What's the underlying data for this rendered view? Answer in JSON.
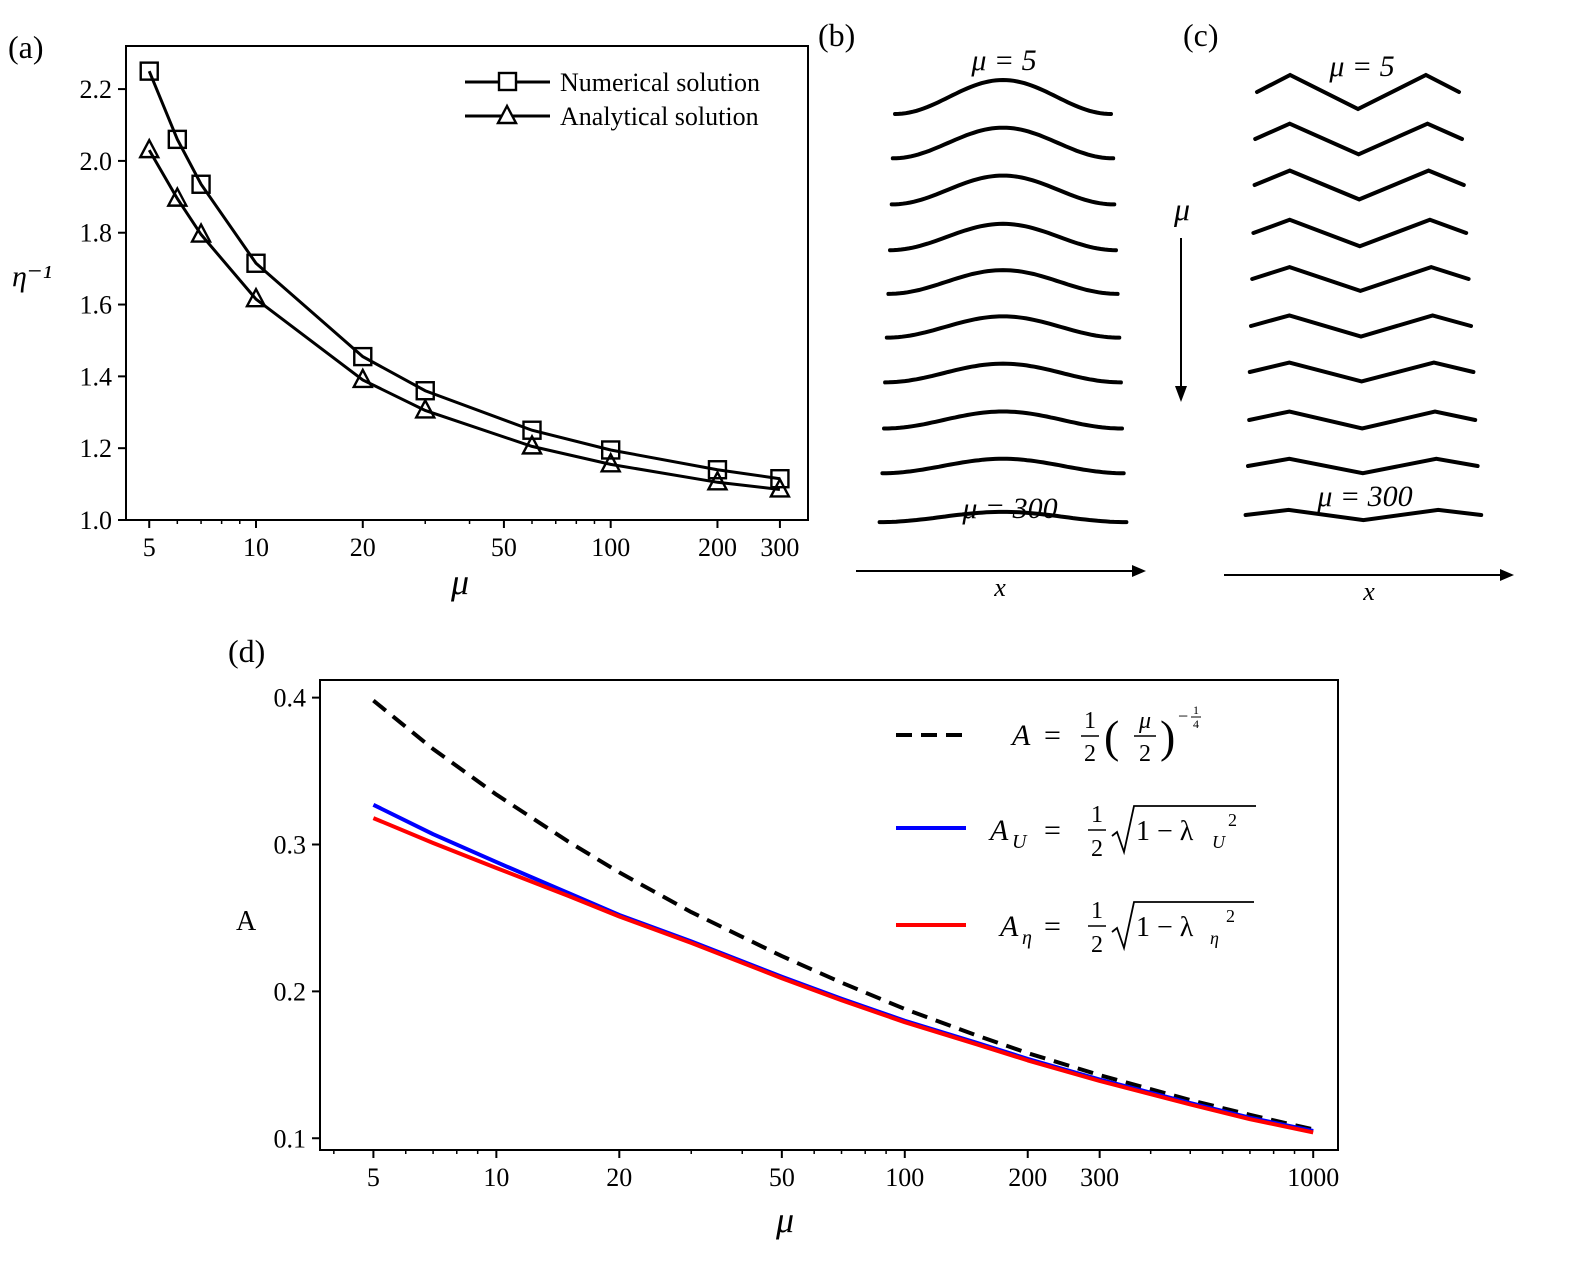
{
  "panels": {
    "a": {
      "label": "(a)"
    },
    "b": {
      "label": "(b)",
      "mu_top": "μ = 5",
      "mu_bottom": "μ = 300",
      "x_axis": "x",
      "mu_arrow": "μ"
    },
    "c": {
      "label": "(c)",
      "mu_top": "μ = 5",
      "mu_bottom": "μ = 300",
      "x_axis": "x"
    },
    "d": {
      "label": "(d)"
    }
  },
  "colors": {
    "black": "#000000",
    "blue": "#0000ff",
    "red": "#ff0000"
  },
  "chart_data": [
    {
      "id": "a",
      "type": "line",
      "xscale": "log",
      "xlabel": "μ",
      "ylabel": "η⁻¹",
      "xlim": [
        4.3,
        360
      ],
      "ylim": [
        1.0,
        2.32
      ],
      "xticks": [
        5,
        10,
        20,
        50,
        100,
        200,
        300
      ],
      "xtick_labels": [
        "5",
        "10",
        "20",
        "50",
        "100",
        "200",
        "300"
      ],
      "yticks": [
        1.0,
        1.2,
        1.4,
        1.6,
        1.8,
        2.0,
        2.2
      ],
      "ytick_labels": [
        "1.0",
        "1.2",
        "1.4",
        "1.6",
        "1.8",
        "2.0",
        "2.2"
      ],
      "legend_position": "top-right",
      "series": [
        {
          "name": "Numerical solution",
          "marker": "square",
          "x": [
            5,
            6,
            7,
            10,
            20,
            30,
            60,
            100,
            200,
            300
          ],
          "y": [
            2.25,
            2.06,
            1.935,
            1.715,
            1.455,
            1.36,
            1.25,
            1.195,
            1.14,
            1.115
          ]
        },
        {
          "name": "Analytical solution",
          "marker": "triangle",
          "x": [
            5,
            6,
            7,
            10,
            20,
            30,
            60,
            100,
            200,
            300
          ],
          "y": [
            2.03,
            1.895,
            1.795,
            1.615,
            1.39,
            1.305,
            1.205,
            1.155,
            1.105,
            1.085
          ]
        }
      ]
    },
    {
      "id": "b",
      "type": "line",
      "description_kind": "wave profiles",
      "profiles": 10,
      "amplitudes": [
        0.4,
        0.36,
        0.34,
        0.31,
        0.28,
        0.25,
        0.22,
        0.2,
        0.17,
        0.12
      ]
    },
    {
      "id": "c",
      "type": "line",
      "description_kind": "zigzag profiles",
      "profiles": 10,
      "amplitudes": [
        0.4,
        0.36,
        0.34,
        0.31,
        0.28,
        0.25,
        0.22,
        0.2,
        0.17,
        0.12
      ]
    },
    {
      "id": "d",
      "type": "line",
      "xscale": "log",
      "xlabel": "μ",
      "ylabel": "A",
      "xlim": [
        3.7,
        1150
      ],
      "ylim": [
        0.092,
        0.412
      ],
      "xticks": [
        5,
        10,
        20,
        50,
        100,
        200,
        300,
        1000
      ],
      "xtick_labels": [
        "5",
        "10",
        "20",
        "50",
        "100",
        "200",
        "300",
        "1000"
      ],
      "yticks": [
        0.1,
        0.2,
        0.3,
        0.4
      ],
      "ytick_labels": [
        "0.1",
        "0.2",
        "0.3",
        "0.4"
      ],
      "legend_position": "top-right",
      "series": [
        {
          "name": "A = (1/2)(μ/2)^(-1/4)",
          "color": "#000000",
          "style": "dashed",
          "x": [
            5,
            7,
            10,
            15,
            20,
            30,
            50,
            70,
            100,
            150,
            200,
            300,
            500,
            700,
            1000
          ],
          "y": [
            0.398,
            0.365,
            0.334,
            0.302,
            0.281,
            0.254,
            0.224,
            0.206,
            0.188,
            0.17,
            0.158,
            0.143,
            0.126,
            0.116,
            0.106
          ]
        },
        {
          "name": "A_U = (1/2)√(1 − λ_U²)",
          "color": "#0000ff",
          "style": "solid",
          "x": [
            5,
            7,
            10,
            15,
            20,
            30,
            50,
            70,
            100,
            150,
            200,
            300,
            500,
            700,
            1000
          ],
          "y": [
            0.327,
            0.307,
            0.288,
            0.267,
            0.252,
            0.234,
            0.21,
            0.195,
            0.18,
            0.165,
            0.154,
            0.14,
            0.124,
            0.114,
            0.105
          ]
        },
        {
          "name": "A_η = (1/2)√(1 − λ_η²)",
          "color": "#ff0000",
          "style": "solid",
          "x": [
            5,
            7,
            10,
            15,
            20,
            30,
            50,
            70,
            100,
            150,
            200,
            300,
            500,
            700,
            1000
          ],
          "y": [
            0.318,
            0.301,
            0.284,
            0.265,
            0.251,
            0.233,
            0.209,
            0.194,
            0.179,
            0.164,
            0.153,
            0.139,
            0.123,
            0.113,
            0.104
          ]
        }
      ]
    }
  ]
}
